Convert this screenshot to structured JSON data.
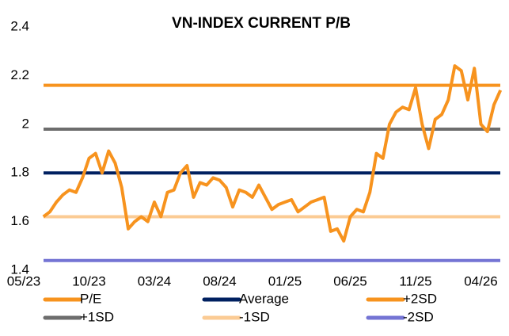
{
  "chart_data": {
    "type": "line",
    "title": "VN-INDEX CURRENT P/B",
    "categories": [
      "05/23",
      null,
      null,
      null,
      null,
      null,
      null,
      null,
      null,
      null,
      "10/23",
      null,
      null,
      null,
      null,
      null,
      null,
      null,
      null,
      null,
      "03/24",
      null,
      null,
      null,
      null,
      null,
      null,
      null,
      null,
      null,
      "08/24",
      null,
      null,
      null,
      null,
      null,
      null,
      null,
      null,
      null,
      "01/25",
      null,
      null,
      null,
      null,
      null,
      null,
      null,
      null,
      null,
      "06/25",
      null,
      null,
      null,
      null,
      null,
      null,
      null,
      null,
      null,
      "11/25",
      null,
      null,
      null,
      null,
      null,
      null,
      null,
      null,
      null,
      "04/26",
      null,
      null,
      null
    ],
    "series": [
      {
        "name": "P/E",
        "color": "#f7931e",
        "values": [
          null,
          null,
          null,
          1.62,
          1.64,
          1.68,
          1.71,
          1.73,
          1.72,
          1.78,
          1.86,
          1.88,
          1.8,
          1.89,
          1.84,
          1.74,
          1.57,
          1.6,
          1.62,
          1.6,
          1.68,
          1.62,
          1.72,
          1.73,
          1.8,
          1.83,
          1.7,
          1.76,
          1.75,
          1.78,
          1.77,
          1.74,
          1.66,
          1.73,
          1.72,
          1.7,
          1.75,
          1.7,
          1.65,
          1.67,
          1.68,
          1.69,
          1.64,
          1.66,
          1.68,
          1.69,
          1.7,
          1.56,
          1.57,
          1.52,
          1.62,
          1.65,
          1.64,
          1.72,
          1.88,
          1.86,
          2.0,
          2.05,
          2.07,
          2.06,
          2.15,
          2.0,
          1.9,
          2.02,
          2.04,
          2.1,
          2.24,
          2.22,
          2.1,
          2.23,
          2.0,
          1.97,
          2.08,
          2.14
        ]
      },
      {
        "name": "Average",
        "color": "#002060",
        "value": 1.8
      },
      {
        "name": "+2SD",
        "color": "#f7931e",
        "value": 2.16
      },
      {
        "name": "+1SD",
        "color": "#6d6d6d",
        "value": 1.98
      },
      {
        "name": "-1SD",
        "color": "#fbcb94",
        "value": 1.62
      },
      {
        "name": "-2SD",
        "color": "#7474d4",
        "value": 1.44
      }
    ],
    "ylim": [
      1.4,
      2.4
    ],
    "yticks": [
      1.4,
      1.6,
      1.8,
      2,
      2.2,
      2.4
    ],
    "grid": false
  }
}
